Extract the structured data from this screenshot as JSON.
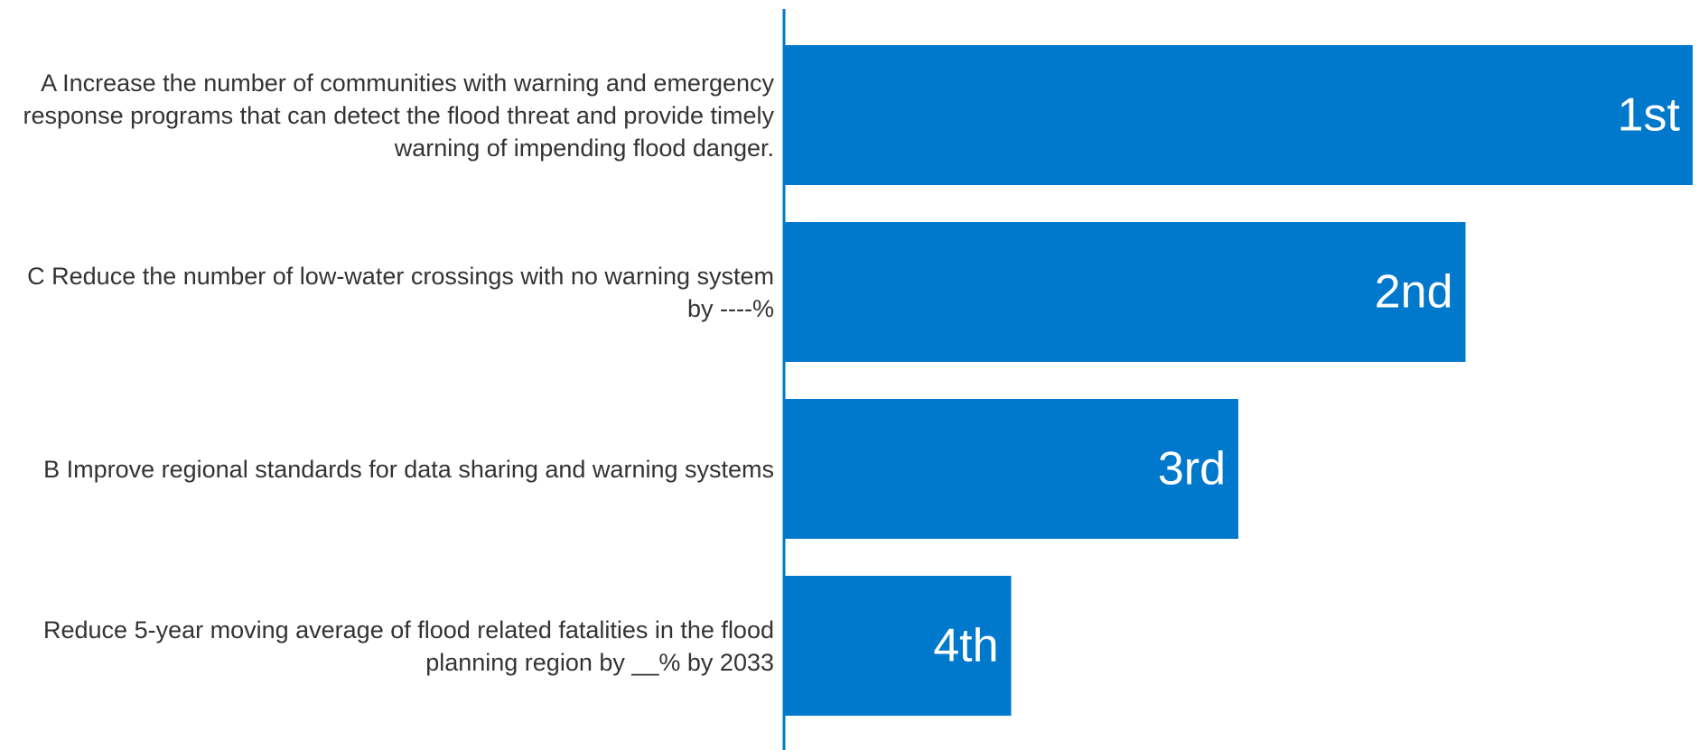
{
  "colors": {
    "bar": "#0078CC",
    "axis": "#0078CC",
    "label_text": "#333333",
    "bar_label_text": "#ffffff"
  },
  "chart_data": {
    "type": "bar",
    "orientation": "horizontal",
    "title": "",
    "xlabel": "",
    "ylabel": "",
    "grid": false,
    "legend": "none",
    "xlim": [
      0,
      4
    ],
    "categories": [
      "A Increase the number of communities with warning and emergency response programs that can detect the flood threat and provide timely warning of impending flood danger.",
      "C Reduce the number of low-water crossings with no warning system by ----%",
      "B Improve regional standards for data sharing and warning systems",
      "Reduce 5-year moving average of flood related fatalities in the flood planning region by __% by 2033"
    ],
    "values": [
      4,
      3,
      2,
      1
    ],
    "data_labels": [
      "1st",
      "2nd",
      "3rd",
      "4th"
    ]
  }
}
